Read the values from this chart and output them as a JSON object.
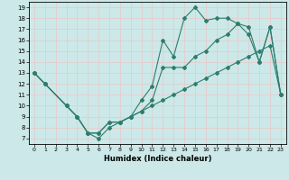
{
  "title": "",
  "xlabel": "Humidex (Indice chaleur)",
  "bg_color": "#cce8e8",
  "grid_color": "#e8c8c8",
  "line_color": "#2e7d6e",
  "xlim": [
    -0.5,
    23.5
  ],
  "ylim": [
    6.5,
    19.5
  ],
  "xticks": [
    0,
    1,
    2,
    3,
    4,
    5,
    6,
    7,
    8,
    9,
    10,
    11,
    12,
    13,
    14,
    15,
    16,
    17,
    18,
    19,
    20,
    21,
    22,
    23
  ],
  "yticks": [
    7,
    8,
    9,
    10,
    11,
    12,
    13,
    14,
    15,
    16,
    17,
    18,
    19
  ],
  "line1_x": [
    0,
    1,
    3,
    4,
    5,
    6,
    7,
    8,
    9,
    10,
    11,
    12,
    13,
    14,
    15,
    16,
    17,
    18,
    19,
    20,
    21,
    22,
    23
  ],
  "line1_y": [
    13,
    12,
    10,
    9,
    7.5,
    7.5,
    8.5,
    8.5,
    9.0,
    10.5,
    11.8,
    16.0,
    14.5,
    18.0,
    19.0,
    17.8,
    18.0,
    18.0,
    17.5,
    16.5,
    14.0,
    17.2,
    11.0
  ],
  "line2_x": [
    0,
    1,
    3,
    4,
    5,
    6,
    7,
    8,
    9,
    10,
    11,
    12,
    13,
    14,
    15,
    16,
    17,
    18,
    19,
    20,
    21,
    22,
    23
  ],
  "line2_y": [
    13,
    12,
    10,
    9,
    7.5,
    7.5,
    8.5,
    8.5,
    9.0,
    9.5,
    10.5,
    13.5,
    13.5,
    13.5,
    14.5,
    15.0,
    16.0,
    16.5,
    17.5,
    17.2,
    14.0,
    17.2,
    11.0
  ],
  "line3_x": [
    0,
    1,
    3,
    4,
    5,
    6,
    7,
    8,
    9,
    10,
    11,
    12,
    13,
    14,
    15,
    16,
    17,
    18,
    19,
    20,
    21,
    22,
    23
  ],
  "line3_y": [
    13,
    12,
    10,
    9,
    7.5,
    7.0,
    8.0,
    8.5,
    9.0,
    9.5,
    10.0,
    10.5,
    11.0,
    11.5,
    12.0,
    12.5,
    13.0,
    13.5,
    14.0,
    14.5,
    15.0,
    15.5,
    11.0
  ]
}
